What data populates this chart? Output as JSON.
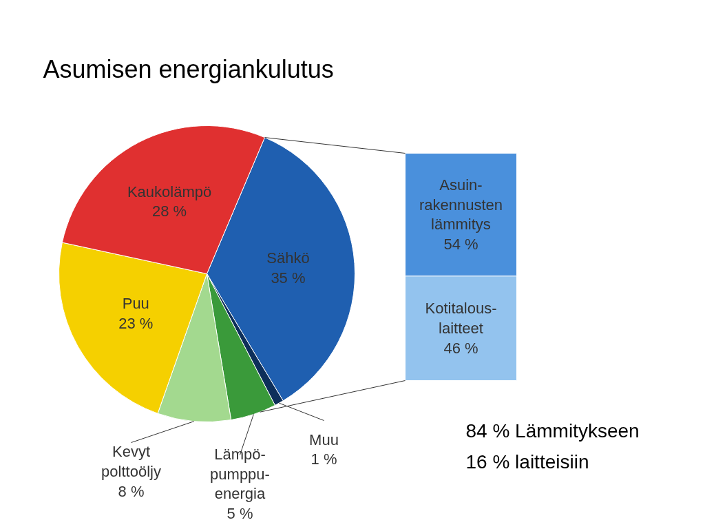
{
  "chart_data": [
    {
      "type": "pie",
      "title": "Asumisen energiankulutus",
      "categories": [
        "Sähkö",
        "Muu",
        "Lämpö-\npumppu-\nenergia",
        "Kevyt\npolttoöljy",
        "Puu",
        "Kaukolämpö"
      ],
      "values": [
        35,
        1,
        5,
        8,
        23,
        28
      ],
      "value_labels": [
        "35 %",
        "1 %",
        "5 %",
        "8 %",
        "23 %",
        "28 %"
      ],
      "colors": [
        "#1f5fb0",
        "#0d2f5a",
        "#3a9a3a",
        "#a3d98f",
        "#f5d000",
        "#e03030"
      ],
      "annotations": [
        "84 % Lämmitykseen",
        "16 % laitteisiin"
      ]
    },
    {
      "type": "bar",
      "stacked": true,
      "categories": [
        null
      ],
      "series": [
        {
          "name": "Kotitalous-\nlaitteet",
          "color": "#93c3ee",
          "values": [
            46
          ],
          "value_labels": [
            "46 %"
          ]
        },
        {
          "name": "Asuin-\nrakennusten\nlämmitys",
          "color": "#4a90dc",
          "values": [
            54
          ],
          "value_labels": [
            "54 %"
          ]
        }
      ]
    }
  ]
}
